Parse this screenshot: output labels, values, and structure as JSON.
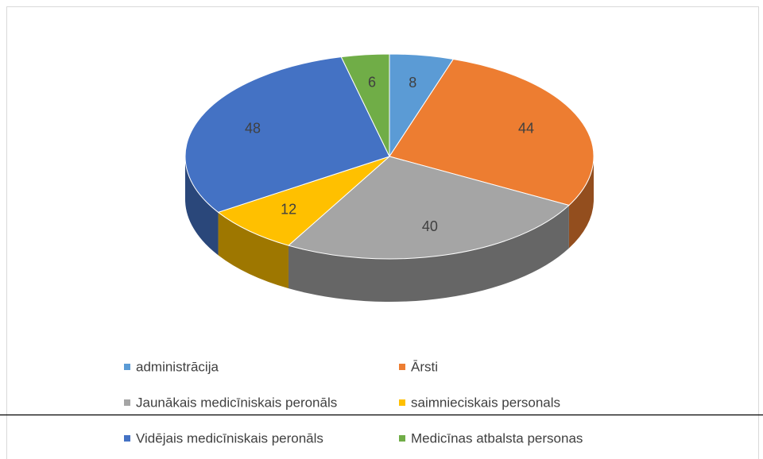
{
  "chart_data": {
    "type": "pie3d",
    "categories": [
      "administrācija",
      "Ārsti",
      "Jaunākais medicīniskais peronāls",
      "saimnieciskais personals",
      "Vidējais medicīniskais peronāls",
      "Medicīnas atbalsta personas"
    ],
    "values": [
      8,
      44,
      40,
      12,
      48,
      6
    ],
    "colors": [
      "#5b9bd5",
      "#ed7d31",
      "#a5a5a5",
      "#ffc000",
      "#4472c4",
      "#70ad47"
    ],
    "legend": "bottom"
  }
}
